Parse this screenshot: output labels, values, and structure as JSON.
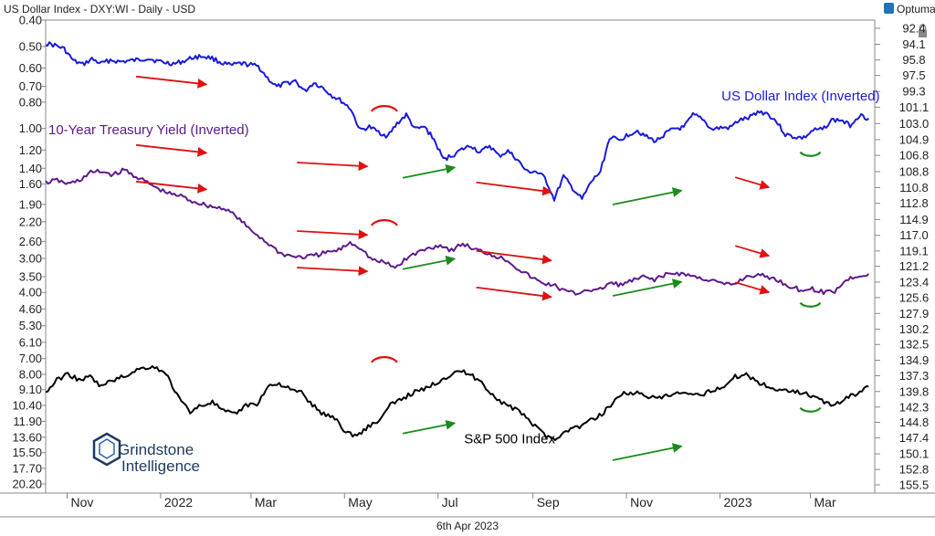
{
  "header": {
    "title": "US Dollar Index - DXY:WI - Daily - USD",
    "brand": "Optuma",
    "brand_icon": "optuma-icon",
    "lock_icon": "lock-icon"
  },
  "footer": {
    "date_label": "6th Apr 2023"
  },
  "logo": {
    "line1": "Grindstone",
    "line2": "Intelligence",
    "icon": "grindstone-logo-icon",
    "color": "#1e3a5f"
  },
  "chart_data": {
    "type": "line",
    "x_tick_labels": [
      "Nov",
      "2022",
      "Mar",
      "May",
      "Jul",
      "Sep",
      "Nov",
      "2023",
      "Mar"
    ],
    "x_range": [
      "2021-10-18",
      "2023-04-12"
    ],
    "left_axis": {
      "ticks": [
        "0.40",
        "0.50",
        "0.60",
        "0.70",
        "0.80",
        "1.00",
        "1.20",
        "1.40",
        "1.60",
        "1.90",
        "2.20",
        "2.60",
        "3.00",
        "3.50",
        "4.00",
        "4.60",
        "5.30",
        "6.10",
        "7.00",
        "8.00",
        "9.10",
        "10.40",
        "11.90",
        "13.60",
        "15.50",
        "17.70",
        "20.20"
      ],
      "inverted": true,
      "log": true
    },
    "right_axis": {
      "ticks": [
        "92.4",
        "94.1",
        "95.8",
        "97.5",
        "99.3",
        "101.1",
        "103.0",
        "104.9",
        "106.8",
        "108.8",
        "110.8",
        "112.8",
        "114.9",
        "117.0",
        "119.1",
        "121.2",
        "123.4",
        "125.6",
        "127.9",
        "130.2",
        "132.5",
        "134.9",
        "137.3",
        "139.8",
        "142.3",
        "144.8",
        "147.4",
        "150.1",
        "152.8",
        "155.5"
      ],
      "inverted": true,
      "log": true
    },
    "series": [
      {
        "name": "US Dollar Index (Inverted)",
        "color": "#1a1adb",
        "values": [
          94.0,
          94.2,
          94.6,
          95.9,
          96.3,
          95.7,
          96.2,
          95.8,
          96.0,
          95.9,
          95.8,
          95.6,
          95.9,
          96.1,
          96.2,
          95.9,
          95.5,
          95.4,
          95.6,
          96.1,
          96.4,
          96.2,
          96.3,
          96.5,
          97.8,
          98.8,
          98.4,
          98.1,
          99.3,
          98.3,
          98.9,
          99.8,
          100.4,
          101.3,
          103.8,
          103.4,
          104.0,
          104.5,
          103.0,
          102.0,
          103.7,
          103.4,
          104.9,
          107.3,
          106.8,
          106.1,
          105.6,
          106.5,
          105.6,
          106.9,
          106.3,
          107.3,
          108.8,
          108.8,
          109.6,
          112.3,
          109.4,
          110.9,
          112.3,
          110.1,
          108.8,
          104.6,
          105.0,
          104.3,
          103.8,
          104.6,
          105.1,
          104.2,
          103.6,
          103.5,
          102.0,
          102.4,
          103.7,
          103.5,
          103.5,
          102.6,
          102.4,
          101.6,
          101.8,
          102.7,
          104.3,
          104.6,
          104.7,
          103.8,
          103.7,
          102.6,
          102.6,
          103.2,
          102.0,
          102.4
        ],
        "label": {
          "text": "US Dollar Index (Inverted)",
          "x": "2023-01-02",
          "y": 100.3
        },
        "axis": "right"
      },
      {
        "name": "10-Year Treasury Yield (Inverted)",
        "color": "#5c1a8c",
        "values": [
          1.58,
          1.55,
          1.6,
          1.55,
          1.45,
          1.44,
          1.48,
          1.42,
          1.5,
          1.58,
          1.67,
          1.74,
          1.77,
          1.85,
          1.9,
          1.95,
          1.97,
          2.12,
          2.33,
          2.5,
          2.7,
          2.9,
          2.95,
          2.97,
          2.92,
          2.85,
          2.8,
          2.62,
          2.75,
          3.05,
          3.1,
          3.25,
          3.0,
          2.85,
          2.75,
          2.68,
          2.8,
          2.65,
          2.78,
          2.85,
          2.95,
          3.05,
          3.3,
          3.5,
          3.7,
          3.75,
          3.95,
          4.05,
          3.9,
          3.95,
          3.7,
          3.75,
          3.63,
          3.52,
          3.58,
          3.45,
          3.4,
          3.45,
          3.55,
          3.6,
          3.73,
          3.75,
          3.52,
          3.45,
          3.5,
          3.62,
          3.8,
          3.92,
          3.88,
          4.0,
          3.95,
          3.6,
          3.48,
          3.42
        ],
        "label": {
          "text": "10-Year Treasury Yield (Inverted)",
          "x": "2021-10-18",
          "y": 1.05
        },
        "axis": "left"
      },
      {
        "name": "S&P 500 Index",
        "color": "#000000",
        "values": [
          140.0,
          138.0,
          137.0,
          138.0,
          137.5,
          139.0,
          138.0,
          137.5,
          136.5,
          136.0,
          136.0,
          137.5,
          141.0,
          143.0,
          142.0,
          141.5,
          143.0,
          143.5,
          142.0,
          141.8,
          139.0,
          138.5,
          139.5,
          140.0,
          142.0,
          143.5,
          144.0,
          146.5,
          147.0,
          145.5,
          144.5,
          142.0,
          141.0,
          140.0,
          139.5,
          138.5,
          137.5,
          136.5,
          137.0,
          138.0,
          140.0,
          141.5,
          142.5,
          143.5,
          145.5,
          147.0,
          147.5,
          146.0,
          145.5,
          144.5,
          143.5,
          141.5,
          140.0,
          140.0,
          140.5,
          141.0,
          140.5,
          140.0,
          140.5,
          140.3,
          139.5,
          139.0,
          137.5,
          137.0,
          138.3,
          139.0,
          139.7,
          139.5,
          140.0,
          140.5,
          141.5,
          142.0,
          140.8,
          140.0,
          139.0
        ],
        "label": {
          "text": "S&P 500 Index",
          "x": "2022-07-18",
          "y": 148.3
        },
        "axis": "right"
      }
    ],
    "annotations": {
      "red_arrows": [
        {
          "x1": "2021-12-16",
          "y1": 1.45,
          "x2": "2022-01-31",
          "y2": 1.55
        },
        {
          "x1": "2022-03-31",
          "y1": 3.0,
          "x2": "2022-05-16",
          "y2": 3.1
        },
        {
          "x1": "2022-07-26",
          "y1": 3.55,
          "x2": "2022-09-13",
          "y2": 3.85
        },
        {
          "x1": "2023-01-11",
          "y1": 3.4,
          "x2": "2023-02-02",
          "y2": 3.7
        }
      ],
      "green_arrows": [
        {
          "x1": "2022-06-08",
          "y1": 3.55,
          "x2": "2022-07-12",
          "y2": 3.25
        },
        {
          "x1": "2022-10-23",
          "y1": 4.45,
          "x2": "2022-12-07",
          "y2": 3.95
        }
      ],
      "red_arcs": [
        {
          "cx": "2022-05-27",
          "cy": 2.65
        }
      ],
      "green_arcs": [
        {
          "cx": "2023-03-01",
          "cy": 4.2
        }
      ]
    }
  }
}
